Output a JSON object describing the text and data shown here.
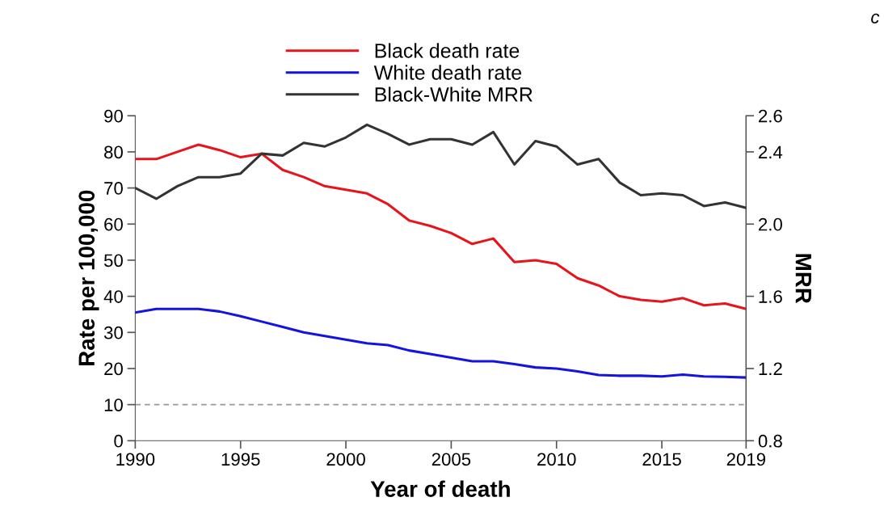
{
  "chart_data": {
    "type": "line",
    "xlabel": "Year of death",
    "ylabel": "Rate per 100,000",
    "y2label": "MRR",
    "annotations": [
      "c"
    ],
    "x": [
      1990,
      1991,
      1992,
      1993,
      1994,
      1995,
      1996,
      1997,
      1998,
      1999,
      2000,
      2001,
      2002,
      2003,
      2004,
      2005,
      2006,
      2007,
      2008,
      2009,
      2010,
      2011,
      2012,
      2013,
      2014,
      2015,
      2016,
      2017,
      2018,
      2019
    ],
    "series": [
      {
        "name": "Black death rate",
        "color": "#e8141c",
        "values": [
          78,
          78,
          80,
          82,
          80.5,
          78.5,
          79.5,
          75,
          73,
          70.5,
          69.5,
          68.5,
          65.5,
          61,
          59.5,
          57.5,
          54.5,
          56,
          49.5,
          50,
          49,
          45,
          43,
          40,
          39,
          38.5,
          39.5,
          37.5,
          38,
          36.5
        ]
      },
      {
        "name": "White death rate",
        "color": "#1414e0",
        "values": [
          35.5,
          36.5,
          36.5,
          36.5,
          35.8,
          34.5,
          33,
          31.5,
          30,
          29,
          28,
          27,
          26.5,
          25,
          24,
          23,
          22,
          22,
          21.2,
          20.3,
          20,
          19.2,
          18.2,
          18,
          18,
          17.8,
          18.3,
          17.8,
          17.7,
          17.5
        ]
      },
      {
        "name": "Black-White MRR",
        "color": "#333333",
        "axis": "y2",
        "values": [
          2.2,
          2.14,
          2.21,
          2.26,
          2.26,
          2.28,
          2.39,
          2.38,
          2.45,
          2.43,
          2.48,
          2.55,
          2.5,
          2.44,
          2.47,
          2.47,
          2.44,
          2.51,
          2.33,
          2.46,
          2.43,
          2.33,
          2.36,
          2.23,
          2.16,
          2.17,
          2.16,
          2.1,
          2.12,
          2.09
        ]
      }
    ],
    "xlim": [
      1990,
      2019
    ],
    "xticks": [
      1990,
      1995,
      2000,
      2005,
      2010,
      2015,
      2019
    ],
    "ylim": [
      0,
      90
    ],
    "yticks": [
      0,
      10,
      20,
      30,
      40,
      50,
      60,
      70,
      80,
      90
    ],
    "y2lim": [
      0.8,
      2.6
    ],
    "y2ticks": [
      {
        "value": 0.8,
        "label": "0.8"
      },
      {
        "value": 1.2,
        "label": "1.2"
      },
      {
        "value": 1.6,
        "label": "1.6"
      },
      {
        "value": 2.0,
        "label": "2.0"
      },
      {
        "value": 2.4,
        "label": "2.4"
      },
      {
        "value": 2.6,
        "label": "2.6"
      }
    ],
    "ref_lines": [
      {
        "axis": "y",
        "value": 10,
        "color": "#999999",
        "line_style": "dashed"
      }
    ],
    "legend": "top",
    "grid": false
  }
}
